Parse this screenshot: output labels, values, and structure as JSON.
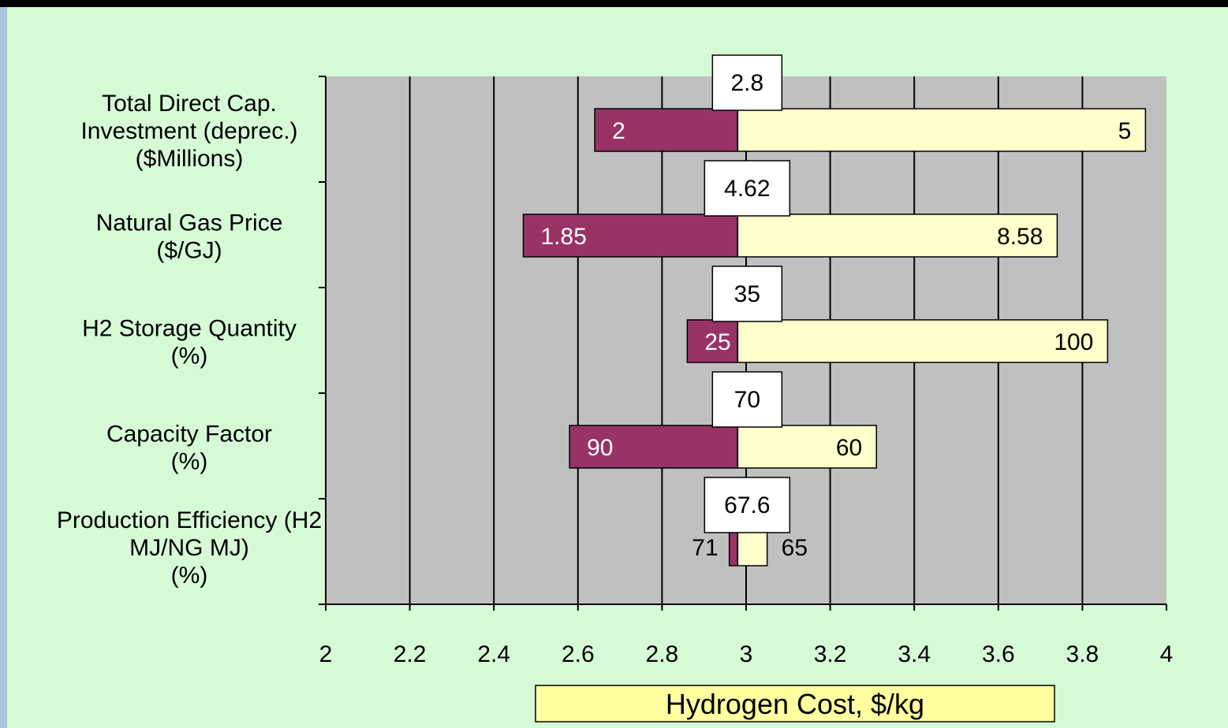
{
  "chart_data": {
    "type": "bar",
    "subtype": "tornado",
    "xlabel": "Hydrogen Cost, $/kg",
    "xlim": [
      2,
      4
    ],
    "xticks": [
      "2",
      "2.2",
      "2.4",
      "2.6",
      "2.8",
      "3",
      "3.2",
      "3.4",
      "3.6",
      "3.8",
      "4"
    ],
    "baseline": 2.98,
    "grid": "vertical",
    "colors": {
      "page_background": "#d6fad6",
      "plot_background": "#c0c0c0",
      "low_bar": "#993366",
      "high_bar": "#ffffcc",
      "gridline": "#000000"
    },
    "categories": [
      {
        "label_lines": [
          "Total Direct Cap.",
          "Investment (deprec.)",
          "($Millions)"
        ],
        "base_label": "2.8",
        "low_label": "2",
        "low_cost": 2.64,
        "high_label": "5",
        "high_cost": 3.95,
        "label_position": "inside"
      },
      {
        "label_lines": [
          "Natural Gas Price",
          "($/GJ)"
        ],
        "base_label": "4.62",
        "low_label": "1.85",
        "low_cost": 2.47,
        "high_label": "8.58",
        "high_cost": 3.74,
        "label_position": "inside"
      },
      {
        "label_lines": [
          "H2 Storage Quantity",
          "(%)"
        ],
        "base_label": "35",
        "low_label": "25",
        "low_cost": 2.86,
        "high_label": "100",
        "high_cost": 3.86,
        "label_position": "inside"
      },
      {
        "label_lines": [
          "Capacity Factor",
          "(%)"
        ],
        "base_label": "70",
        "low_label": "90",
        "low_cost": 2.58,
        "high_label": "60",
        "high_cost": 3.31,
        "label_position": "inside"
      },
      {
        "label_lines": [
          "Production Efficiency (H2",
          "MJ/NG MJ)",
          "(%)"
        ],
        "base_label": "67.6",
        "low_label": "71",
        "low_cost": 2.96,
        "high_label": "65",
        "high_cost": 3.05,
        "label_position": "outside"
      }
    ]
  }
}
